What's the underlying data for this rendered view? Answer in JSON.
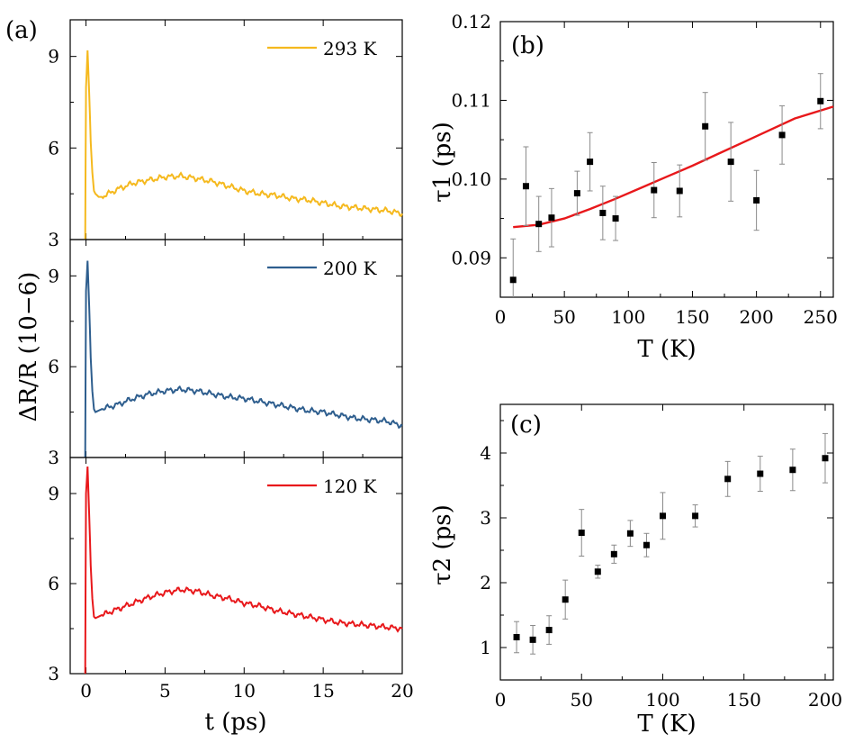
{
  "chart_data": [
    {
      "panel": "(a)",
      "type": "line",
      "xlabel": "t (ps)",
      "ylabel": "ΔR/R (10−6)",
      "xlim": [
        -1,
        20
      ],
      "xticks": [
        "0",
        "5",
        "10",
        "15",
        "20"
      ],
      "subplots": [
        {
          "legend": "293 K",
          "color": "#f5b91e",
          "ylim": [
            3,
            10.2
          ],
          "yticks": [
            "3",
            "6",
            "9"
          ],
          "x": [
            -0.05,
            0.0,
            0.1,
            0.2,
            0.3,
            0.4,
            0.5,
            0.6,
            0.8,
            1.0,
            2.0,
            3.0,
            4.0,
            5.0,
            6.0,
            7.0,
            8.0,
            9.0,
            10.0,
            11.0,
            12.0,
            13.0,
            14.0,
            15.0,
            16.0,
            17.0,
            18.0,
            19.0,
            20.0
          ],
          "values": [
            3.0,
            8.0,
            9.2,
            7.8,
            6.2,
            5.2,
            4.6,
            4.5,
            4.4,
            4.4,
            4.65,
            4.85,
            4.95,
            5.05,
            5.08,
            5.0,
            4.9,
            4.75,
            4.6,
            4.5,
            4.45,
            4.35,
            4.3,
            4.2,
            4.1,
            4.05,
            4.0,
            3.95,
            3.85
          ]
        },
        {
          "legend": "200 K",
          "color": "#2e5e8e",
          "ylim": [
            3,
            10.2
          ],
          "yticks": [
            "3",
            "6",
            "9"
          ],
          "x": [
            -0.05,
            0.0,
            0.1,
            0.2,
            0.3,
            0.4,
            0.5,
            0.6,
            0.8,
            1.0,
            2.0,
            3.0,
            4.0,
            5.0,
            6.0,
            7.0,
            8.0,
            9.0,
            10.0,
            11.0,
            12.0,
            13.0,
            14.0,
            15.0,
            16.0,
            17.0,
            18.0,
            19.0,
            20.0
          ],
          "values": [
            3.0,
            8.5,
            9.5,
            8.0,
            6.3,
            5.2,
            4.6,
            4.5,
            4.55,
            4.6,
            4.75,
            4.95,
            5.1,
            5.2,
            5.25,
            5.2,
            5.1,
            5.0,
            4.95,
            4.85,
            4.75,
            4.65,
            4.55,
            4.5,
            4.4,
            4.3,
            4.25,
            4.2,
            4.05
          ]
        },
        {
          "legend": "120 K",
          "color": "#e8181b",
          "ylim": [
            3,
            10.2
          ],
          "yticks": [
            "3",
            "6",
            "9"
          ],
          "x": [
            -0.05,
            0.0,
            0.1,
            0.2,
            0.3,
            0.4,
            0.5,
            0.6,
            0.8,
            1.0,
            2.0,
            3.0,
            4.0,
            5.0,
            6.0,
            7.0,
            8.0,
            9.0,
            10.0,
            11.0,
            12.0,
            13.0,
            14.0,
            15.0,
            16.0,
            17.0,
            18.0,
            19.0,
            20.0
          ],
          "values": [
            3.0,
            9.0,
            9.9,
            8.3,
            6.6,
            5.5,
            4.9,
            4.85,
            4.9,
            4.95,
            5.15,
            5.35,
            5.55,
            5.7,
            5.8,
            5.75,
            5.6,
            5.5,
            5.35,
            5.25,
            5.1,
            5.0,
            4.9,
            4.8,
            4.7,
            4.65,
            4.6,
            4.55,
            4.5
          ]
        }
      ]
    },
    {
      "panel": "(b)",
      "type": "scatter",
      "xlabel": "T (K)",
      "ylabel": "τ1 (ps)",
      "xlim": [
        0,
        260
      ],
      "ylim": [
        0.085,
        0.12
      ],
      "xticks": [
        "0",
        "50",
        "100",
        "150",
        "200",
        "250"
      ],
      "yticks": [
        "0.09",
        "0.10",
        "0.11",
        "0.12"
      ],
      "x": [
        10,
        20,
        30,
        40,
        60,
        70,
        80,
        90,
        120,
        140,
        160,
        180,
        200,
        220,
        250
      ],
      "values": [
        0.0872,
        0.0991,
        0.0943,
        0.0951,
        0.0982,
        0.1022,
        0.0957,
        0.095,
        0.0986,
        0.0985,
        0.1067,
        0.1022,
        0.0973,
        0.1056,
        0.1099
      ],
      "errors": [
        0.0052,
        0.005,
        0.0035,
        0.0037,
        0.0028,
        0.0037,
        0.0034,
        0.0028,
        0.0035,
        0.0033,
        0.0043,
        0.005,
        0.0038,
        0.0037,
        0.0035
      ],
      "fit": {
        "color": "#e8181b",
        "x": [
          10,
          30,
          50,
          70,
          90,
          110,
          130,
          150,
          170,
          190,
          210,
          230,
          260
        ],
        "values": [
          0.0939,
          0.0942,
          0.095,
          0.0962,
          0.0975,
          0.0989,
          0.1003,
          0.1017,
          0.1032,
          0.1047,
          0.1062,
          0.1077,
          0.1092
        ]
      }
    },
    {
      "panel": "(c)",
      "type": "scatter",
      "xlabel": "T (K)",
      "ylabel": "τ2 (ps)",
      "xlim": [
        0,
        205
      ],
      "ylim": [
        0.5,
        4.75
      ],
      "xticks": [
        "0",
        "50",
        "100",
        "150",
        "200"
      ],
      "yticks": [
        "1",
        "2",
        "3",
        "4"
      ],
      "x": [
        10,
        20,
        30,
        40,
        50,
        60,
        70,
        80,
        90,
        100,
        120,
        140,
        160,
        180,
        200
      ],
      "values": [
        1.16,
        1.12,
        1.27,
        1.74,
        2.77,
        2.17,
        2.44,
        2.76,
        2.58,
        3.03,
        3.03,
        3.6,
        3.68,
        3.74,
        3.92
      ],
      "errors": [
        0.24,
        0.22,
        0.22,
        0.3,
        0.36,
        0.1,
        0.14,
        0.2,
        0.18,
        0.36,
        0.17,
        0.27,
        0.27,
        0.32,
        0.38
      ]
    }
  ]
}
